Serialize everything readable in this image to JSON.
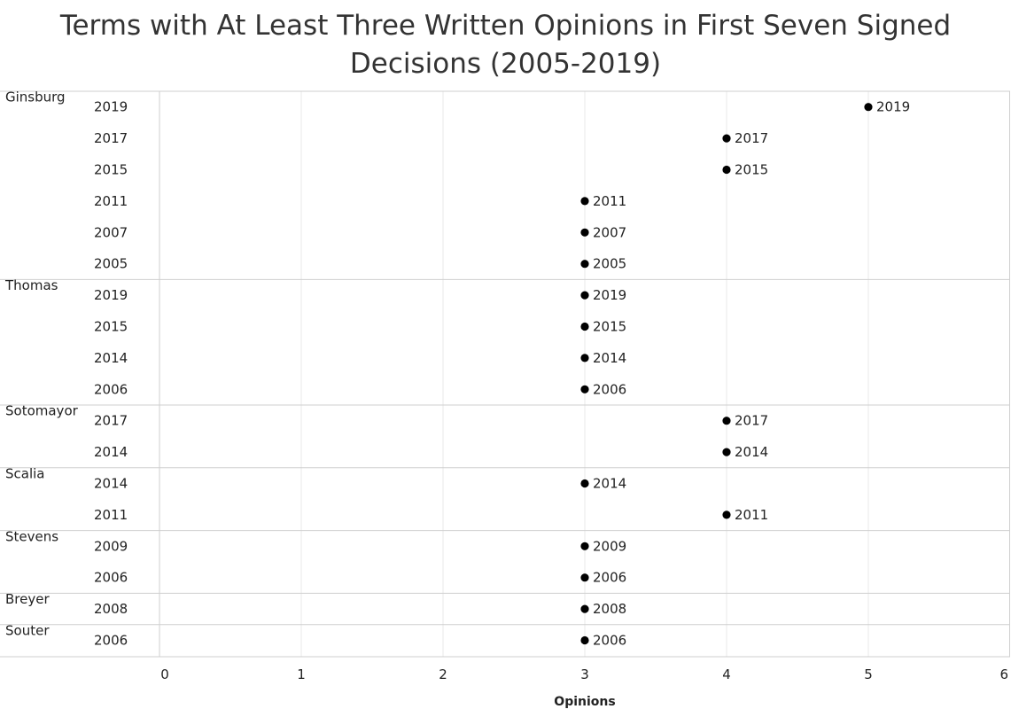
{
  "chart_data": {
    "type": "scatter",
    "title_lines": [
      "Terms with At Least Three Written Opinions in First Seven Signed",
      "Decisions (2005-2019)"
    ],
    "xlabel": "Opinions",
    "xlim": [
      0,
      6
    ],
    "x_ticks": [
      "0",
      "1",
      "2",
      "3",
      "4",
      "5",
      "6"
    ],
    "grid": true,
    "groups": [
      {
        "justice": "Ginsburg",
        "rows": [
          {
            "term": "2019",
            "opinions": 5
          },
          {
            "term": "2017",
            "opinions": 4
          },
          {
            "term": "2015",
            "opinions": 4
          },
          {
            "term": "2011",
            "opinions": 3
          },
          {
            "term": "2007",
            "opinions": 3
          },
          {
            "term": "2005",
            "opinions": 3
          }
        ]
      },
      {
        "justice": "Thomas",
        "rows": [
          {
            "term": "2019",
            "opinions": 3
          },
          {
            "term": "2015",
            "opinions": 3
          },
          {
            "term": "2014",
            "opinions": 3
          },
          {
            "term": "2006",
            "opinions": 3
          }
        ]
      },
      {
        "justice": "Sotomayor",
        "rows": [
          {
            "term": "2017",
            "opinions": 4
          },
          {
            "term": "2014",
            "opinions": 4
          }
        ]
      },
      {
        "justice": "Scalia",
        "rows": [
          {
            "term": "2014",
            "opinions": 3
          },
          {
            "term": "2011",
            "opinions": 4
          }
        ]
      },
      {
        "justice": "Stevens",
        "rows": [
          {
            "term": "2009",
            "opinions": 3
          },
          {
            "term": "2006",
            "opinions": 3
          }
        ]
      },
      {
        "justice": "Breyer",
        "rows": [
          {
            "term": "2008",
            "opinions": 3
          }
        ]
      },
      {
        "justice": "Souter",
        "rows": [
          {
            "term": "2006",
            "opinions": 3
          }
        ]
      }
    ],
    "colors": {
      "point": "#000000",
      "grid": "#e8e8e8",
      "separator": "#cfcfcf",
      "title": "#333333"
    }
  }
}
